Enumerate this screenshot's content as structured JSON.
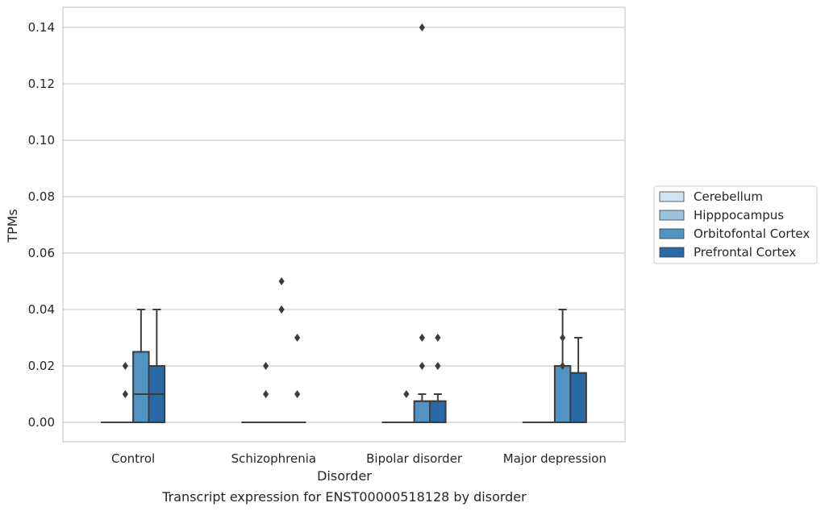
{
  "chart_data": {
    "type": "boxplot",
    "caption": "Transcript expression for ENST00000518128 by disorder",
    "xlabel": "Disorder",
    "ylabel": "TPMs",
    "ylim": [
      -0.007,
      0.147
    ],
    "yticks": [
      "0.00",
      "0.02",
      "0.04",
      "0.06",
      "0.08",
      "0.10",
      "0.12",
      "0.14"
    ],
    "grid": true,
    "legend_position": "right",
    "categories": [
      "Control",
      "Schizophrenia",
      "Bipolar disorder",
      "Major depression"
    ],
    "series": [
      {
        "name": "Cerebellum",
        "color": "#d1e2f1",
        "boxes": [
          {
            "q1": 0,
            "median": 0,
            "q3": 0,
            "whisker_low": 0,
            "whisker_high": 0,
            "outliers": []
          },
          {
            "q1": 0,
            "median": 0,
            "q3": 0,
            "whisker_low": 0,
            "whisker_high": 0,
            "outliers": []
          },
          {
            "q1": 0,
            "median": 0,
            "q3": 0,
            "whisker_low": 0,
            "whisker_high": 0,
            "outliers": []
          },
          {
            "q1": 0,
            "median": 0,
            "q3": 0,
            "whisker_low": 0,
            "whisker_high": 0,
            "outliers": []
          }
        ]
      },
      {
        "name": "Hipppocampus",
        "color": "#9bc3de",
        "boxes": [
          {
            "q1": 0,
            "median": 0,
            "q3": 0,
            "whisker_low": 0,
            "whisker_high": 0,
            "outliers": [
              0.01
            ]
          },
          {
            "q1": 0,
            "median": 0,
            "q3": 0,
            "whisker_low": 0,
            "whisker_high": 0,
            "outliers": [
              0.01,
              0.02
            ]
          },
          {
            "q1": 0,
            "median": 0,
            "q3": 0,
            "whisker_low": 0,
            "whisker_high": 0,
            "outliers": [
              0.01
            ]
          },
          {
            "q1": 0,
            "median": 0,
            "q3": 0,
            "whisker_low": 0,
            "whisker_high": 0,
            "outliers": []
          }
        ]
      },
      {
        "name": "Orbitofontal Cortex",
        "color": "#5194c4",
        "boxes": [
          {
            "q1": 0,
            "median": 0.01,
            "q3": 0.025,
            "whisker_low": 0,
            "whisker_high": 0.04,
            "outliers": []
          },
          {
            "q1": 0,
            "median": 0,
            "q3": 0,
            "whisker_low": 0,
            "whisker_high": 0,
            "outliers": [
              0.04,
              0.04,
              0.05
            ]
          },
          {
            "q1": 0,
            "median": 0.0075,
            "q3": 0.0075,
            "whisker_low": 0,
            "whisker_high": 0.01,
            "outliers": [
              0.02,
              0.03,
              0.14
            ]
          },
          {
            "q1": 0,
            "median": 0.02,
            "q3": 0.02,
            "whisker_low": 0,
            "whisker_high": 0.04,
            "outliers": []
          }
        ]
      },
      {
        "name": "Prefrontal Cortex",
        "color": "#2b69a6",
        "boxes": [
          {
            "q1": 0,
            "median": 0.01,
            "q3": 0.02,
            "whisker_low": 0,
            "whisker_high": 0.04,
            "outliers": []
          },
          {
            "q1": 0,
            "median": 0,
            "q3": 0,
            "whisker_low": 0,
            "whisker_high": 0,
            "outliers": [
              0.01,
              0.03
            ]
          },
          {
            "q1": 0,
            "median": 0.0075,
            "q3": 0.0075,
            "whisker_low": 0,
            "whisker_high": 0.01,
            "outliers": [
              0.02,
              0.03
            ]
          },
          {
            "q1": 0,
            "median": 0.0175,
            "q3": 0.0175,
            "whisker_low": 0,
            "whisker_high": 0.03,
            "outliers": []
          }
        ]
      }
    ],
    "extra_outliers": [
      {
        "category_index": 0,
        "series_index": 1,
        "value": 0.02
      },
      {
        "category_index": 3,
        "series_index": 2,
        "value": 0.02
      },
      {
        "category_index": 3,
        "series_index": 2,
        "value": 0.03
      }
    ]
  }
}
